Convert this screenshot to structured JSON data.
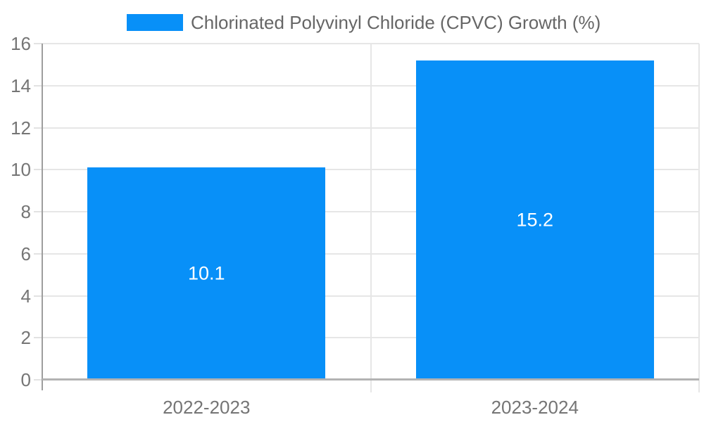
{
  "chart_data": {
    "type": "bar",
    "title": "",
    "legend": {
      "label": "Chlorinated Polyvinyl Chloride (CPVC) Growth (%)",
      "position": "top"
    },
    "categories": [
      "2022-2023",
      "2023-2024"
    ],
    "series": [
      {
        "name": "Chlorinated Polyvinyl Chloride (CPVC) Growth (%)",
        "values": [
          10.1,
          15.2
        ]
      }
    ],
    "value_labels": [
      "10.1",
      "15.2"
    ],
    "xlabel": "",
    "ylabel": "",
    "ylim": [
      0,
      16
    ],
    "yticks": [
      0,
      2,
      4,
      6,
      8,
      10,
      12,
      14,
      16
    ],
    "grid": true,
    "legend_position": "top-left",
    "colors": {
      "bar": "#0890F8",
      "grid_line": "#e6e6e6",
      "y_axis_line": "#9e9e9e",
      "x_axis_line": "#b3b3b3",
      "tick_text": "#757575",
      "legend_text": "#666666",
      "value_label_text": "#ffffff",
      "background": "#ffffff"
    }
  }
}
